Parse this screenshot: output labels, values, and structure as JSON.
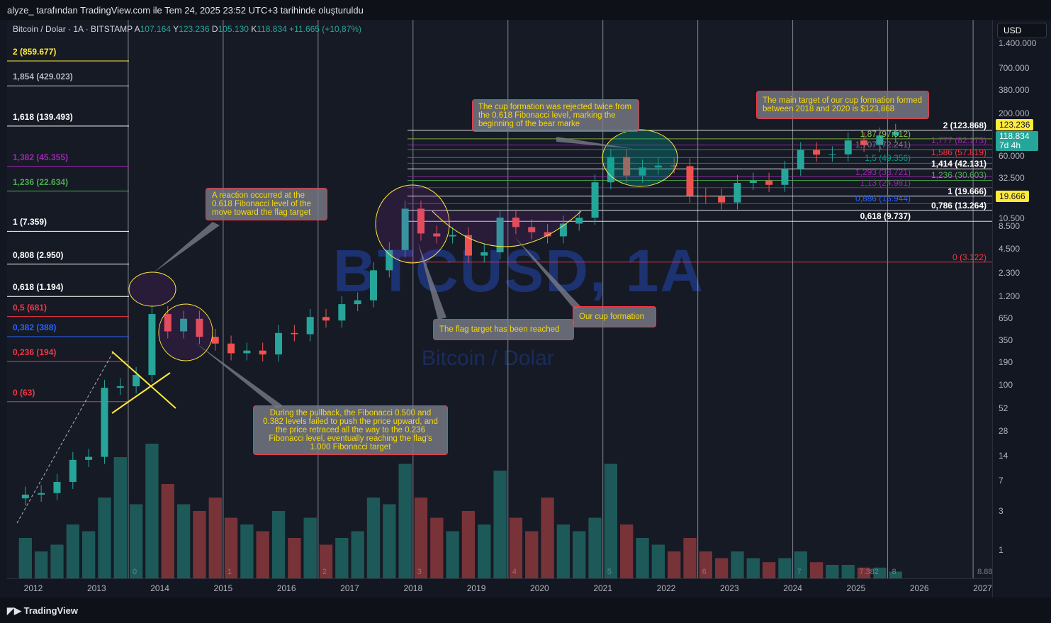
{
  "header": {
    "caption": "alyze_ tarafından TradingView.com ile Tem 24, 2025 23:52 UTC+3 tarihinde oluşturuldu"
  },
  "legend": {
    "symbol": "Bitcoin / Dolar · 1A · BITSTAMP",
    "o_label": "A",
    "o": "107.164",
    "h_label": "Y",
    "h": "123.236",
    "l_label": "D",
    "l": "105.130",
    "c_label": "K",
    "c": "118.834",
    "change": "+11.665 (+10,87%)"
  },
  "watermark": {
    "main": "BTCUSD, 1A",
    "sub": "Bitcoin / Dolar"
  },
  "currency": "USD",
  "footer": {
    "brand": "TradingView"
  },
  "colors": {
    "up": "#26a69a",
    "down": "#ef5350",
    "callout_text": "#f5d90a",
    "price_tag": "#ffeb3b"
  },
  "chart_data": {
    "type": "candlestick",
    "scale": "log",
    "period": "quarterly-approx",
    "start": 2011.75,
    "closes": [
      4.7,
      4.9,
      6.7,
      12.4,
      13.5,
      93,
      97,
      133,
      730,
      450,
      640,
      386,
      320,
      244,
      263,
      236,
      430,
      416,
      673,
      609,
      963,
      1071,
      2480,
      4360,
      13860,
      6930,
      6390,
      6630,
      3740,
      4100,
      10800,
      8300,
      7200,
      6400,
      9140,
      10780,
      28990,
      58800,
      35000,
      43800,
      46300,
      45500,
      19900,
      19400,
      16500,
      28500,
      30400,
      27000,
      42300,
      71300,
      62700,
      63300,
      93400,
      82500,
      107200,
      118834
    ],
    "volume": [
      30,
      20,
      25,
      40,
      35,
      60,
      90,
      55,
      100,
      70,
      55,
      50,
      60,
      45,
      40,
      35,
      50,
      30,
      45,
      25,
      30,
      35,
      60,
      55,
      85,
      60,
      45,
      35,
      50,
      40,
      80,
      45,
      35,
      60,
      40,
      35,
      45,
      85,
      40,
      30,
      25,
      20,
      30,
      20,
      15,
      20,
      15,
      12,
      15,
      20,
      12,
      10,
      10,
      8,
      8,
      5
    ],
    "yticks": [
      "1.400.000",
      "700.000",
      "380.000",
      "200.000",
      "60.000",
      "32.500",
      "10.500",
      "8.500",
      "4.500",
      "2.300",
      "1.200",
      "650",
      "350",
      "190",
      "100",
      "52",
      "28",
      "14",
      "7",
      "3",
      "1"
    ],
    "ytick_values": [
      1400000,
      700000,
      380000,
      200000,
      60000,
      32500,
      10500,
      8500,
      4500,
      2300,
      1200,
      650,
      350,
      190,
      100,
      52,
      28,
      14,
      7,
      3,
      1
    ],
    "xticks": [
      "2012",
      "2013",
      "2014",
      "2015",
      "2016",
      "2017",
      "2018",
      "2019",
      "2020",
      "2021",
      "2022",
      "2023",
      "2024",
      "2025",
      "2026",
      "2027"
    ],
    "cycle_lines": [
      {
        "t": 2013.5,
        "label": "0"
      },
      {
        "t": 2015.0,
        "label": "1"
      },
      {
        "t": 2016.5,
        "label": "2"
      },
      {
        "t": 2018.0,
        "label": "3"
      },
      {
        "t": 2019.5,
        "label": "4"
      },
      {
        "t": 2021.0,
        "label": "5"
      },
      {
        "t": 2022.5,
        "label": "6"
      },
      {
        "t": 2024.0,
        "label": "7"
      },
      {
        "t": 2025.5,
        "label": "8"
      },
      {
        "t": 2026.85,
        "label": "8.88"
      }
    ],
    "cycle_extra_label": "7.382",
    "price_tags": {
      "high": "123.236",
      "last": "118.834",
      "countdown": "7d 4h",
      "level": "19.666"
    },
    "fib_left": [
      {
        "label": "2 (859.677)",
        "price": 859677,
        "color": "#ffeb3b"
      },
      {
        "label": "1,854 (429.023)",
        "price": 429023,
        "color": "#b2b5be"
      },
      {
        "label": "1,618 (139.493)",
        "price": 139493,
        "color": "#ffffff"
      },
      {
        "label": "1,382 (45.355)",
        "price": 45355,
        "color": "#9c27b0"
      },
      {
        "label": "1,236 (22.634)",
        "price": 22634,
        "color": "#4caf50"
      },
      {
        "label": "1 (7.359)",
        "price": 7359,
        "color": "#ffffff"
      },
      {
        "label": "0,808 (2.950)",
        "price": 2950,
        "color": "#ffffff"
      },
      {
        "label": "0,618 (1.194)",
        "price": 1194,
        "color": "#ffffff"
      },
      {
        "label": "0,5 (681)",
        "price": 681,
        "color": "#f23645"
      },
      {
        "label": "0,382 (388)",
        "price": 388,
        "color": "#2962ff"
      },
      {
        "label": "0,236 (194)",
        "price": 194,
        "color": "#f23645"
      },
      {
        "label": "0 (63)",
        "price": 63,
        "color": "#f23645"
      }
    ],
    "fib_right": [
      {
        "label": "2 (123.868)",
        "price": 123868,
        "color": "#ffffff"
      },
      {
        "label": "1,87 (97.512)",
        "price": 97512,
        "color": "#8bc34a"
      },
      {
        "label": "1,777 (82.173)",
        "price": 82173,
        "color": "#9c27b0"
      },
      {
        "label": "1,707 (72.241)",
        "price": 72241,
        "color": "#787b86"
      },
      {
        "label": "1,586 (57.819)",
        "price": 57819,
        "color": "#f23645"
      },
      {
        "label": "1,5 (49.356)",
        "price": 49356,
        "color": "#089981"
      },
      {
        "label": "1,414 (42.131)",
        "price": 42131,
        "color": "#ffffff"
      },
      {
        "label": "1,293 (33.721)",
        "price": 33721,
        "color": "#9c27b0"
      },
      {
        "label": "1,236 (30.603)",
        "price": 30603,
        "color": "#4caf50"
      },
      {
        "label": "1,13 (24.981)",
        "price": 24981,
        "color": "#9c27b0"
      },
      {
        "label": "1 (19.666)",
        "price": 19666,
        "color": "#ffffff"
      },
      {
        "label": "0,886 (15.944)",
        "price": 15944,
        "color": "#2962ff"
      },
      {
        "label": "0,786 (13.264)",
        "price": 13264,
        "color": "#ffffff"
      },
      {
        "label": "0,618 (9.737)",
        "price": 9737,
        "color": "#ffffff"
      },
      {
        "label": "0 (3.122)",
        "price": 3122,
        "color": "#f23645"
      }
    ]
  },
  "callouts": [
    "A reaction occurred at the 0.618 Fibonacci level of the move toward the flag target",
    "During the pullback, the Fibonacci 0.500 and 0.382 levels failed to push the price upward, and the price retraced all the way to the 0.236 Fibonacci level, eventually reaching the flag's 1.000 Fibonacci target",
    "The flag target has been reached",
    "Our cup formation",
    "The cup formation was rejected twice from the 0.618 Fibonacci level, marking the beginning of the bear marke",
    "The main target of our cup formation formed between 2018 and 2020 is $123,868"
  ]
}
